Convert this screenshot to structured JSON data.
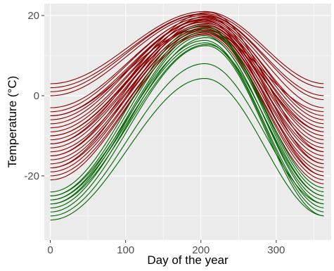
{
  "chart_data": {
    "type": "line",
    "title": "",
    "xlabel": "Day of the year",
    "ylabel": "Temperature (°C)",
    "xlim": [
      -8,
      373
    ],
    "ylim": [
      -36,
      23
    ],
    "x_ticks": [
      0,
      100,
      200,
      300
    ],
    "y_ticks": [
      -20,
      0,
      20
    ],
    "grid": true,
    "panel_background": "#ebebeb",
    "grid_color": "#ffffff",
    "legend": "none",
    "series_groups": [
      {
        "color": "#8b0000",
        "curves": [
          {
            "start": 3,
            "peak_day": 205,
            "peak": 21.0,
            "end": 3
          },
          {
            "start": 2,
            "peak_day": 205,
            "peak": 20.5,
            "end": 2
          },
          {
            "start": 1,
            "peak_day": 203,
            "peak": 20.3,
            "end": 0
          },
          {
            "start": 0,
            "peak_day": 205,
            "peak": 20.0,
            "end": -1
          },
          {
            "start": -3,
            "peak_day": 206,
            "peak": 19.6,
            "end": -3
          },
          {
            "start": -4,
            "peak_day": 204,
            "peak": 19.5,
            "end": -5
          },
          {
            "start": -5,
            "peak_day": 207,
            "peak": 19.2,
            "end": -6
          },
          {
            "start": -6,
            "peak_day": 205,
            "peak": 19.0,
            "end": -7
          },
          {
            "start": -7,
            "peak_day": 203,
            "peak": 18.8,
            "end": -8
          },
          {
            "start": -8,
            "peak_day": 206,
            "peak": 18.5,
            "end": -9
          },
          {
            "start": -9,
            "peak_day": 204,
            "peak": 18.3,
            "end": -10
          },
          {
            "start": -10,
            "peak_day": 208,
            "peak": 18.0,
            "end": -11
          },
          {
            "start": -11,
            "peak_day": 205,
            "peak": 17.8,
            "end": -12
          },
          {
            "start": -12,
            "peak_day": 206,
            "peak": 17.5,
            "end": -13
          },
          {
            "start": -13,
            "peak_day": 204,
            "peak": 17.3,
            "end": -14
          },
          {
            "start": -14,
            "peak_day": 207,
            "peak": 17.0,
            "end": -15
          },
          {
            "start": -15,
            "peak_day": 205,
            "peak": 16.8,
            "end": -16
          },
          {
            "start": -16,
            "peak_day": 206,
            "peak": 16.5,
            "end": -17
          },
          {
            "start": -17,
            "peak_day": 204,
            "peak": 16.2,
            "end": -18
          },
          {
            "start": -18,
            "peak_day": 207,
            "peak": 16.0,
            "end": -19
          },
          {
            "start": -19,
            "peak_day": 205,
            "peak": 15.8,
            "end": -20
          },
          {
            "start": -20,
            "peak_day": 206,
            "peak": 15.5,
            "end": -21
          },
          {
            "start": -21,
            "peak_day": 204,
            "peak": 15.3,
            "end": -22
          },
          {
            "start": -12,
            "peak_day": 210,
            "peak": 20.8,
            "end": -14
          },
          {
            "start": -15,
            "peak_day": 208,
            "peak": 19.8,
            "end": -17
          },
          {
            "start": -18,
            "peak_day": 206,
            "peak": 18.8,
            "end": -20
          },
          {
            "start": -10,
            "peak_day": 202,
            "peak": 17.2,
            "end": -9
          },
          {
            "start": -5,
            "peak_day": 200,
            "peak": 16.5,
            "end": -4
          }
        ]
      },
      {
        "color": "#006400",
        "curves": [
          {
            "start": -24,
            "peak_day": 203,
            "peak": 17.5,
            "end": -23
          },
          {
            "start": -25,
            "peak_day": 205,
            "peak": 16.8,
            "end": -24
          },
          {
            "start": -26,
            "peak_day": 206,
            "peak": 16.0,
            "end": -25
          },
          {
            "start": -27,
            "peak_day": 204,
            "peak": 15.0,
            "end": -26
          },
          {
            "start": -28,
            "peak_day": 207,
            "peak": 14.5,
            "end": -27
          },
          {
            "start": -25,
            "peak_day": 205,
            "peak": 13.8,
            "end": -28
          },
          {
            "start": -26,
            "peak_day": 206,
            "peak": 13.2,
            "end": -29
          },
          {
            "start": -27,
            "peak_day": 208,
            "peak": 12.8,
            "end": -25
          },
          {
            "start": -29,
            "peak_day": 207,
            "peak": 12.5,
            "end": -30
          },
          {
            "start": -30,
            "peak_day": 205,
            "peak": 8.0,
            "end": -27
          },
          {
            "start": -31,
            "peak_day": 205,
            "peak": 4.3,
            "end": -30
          }
        ]
      }
    ]
  }
}
